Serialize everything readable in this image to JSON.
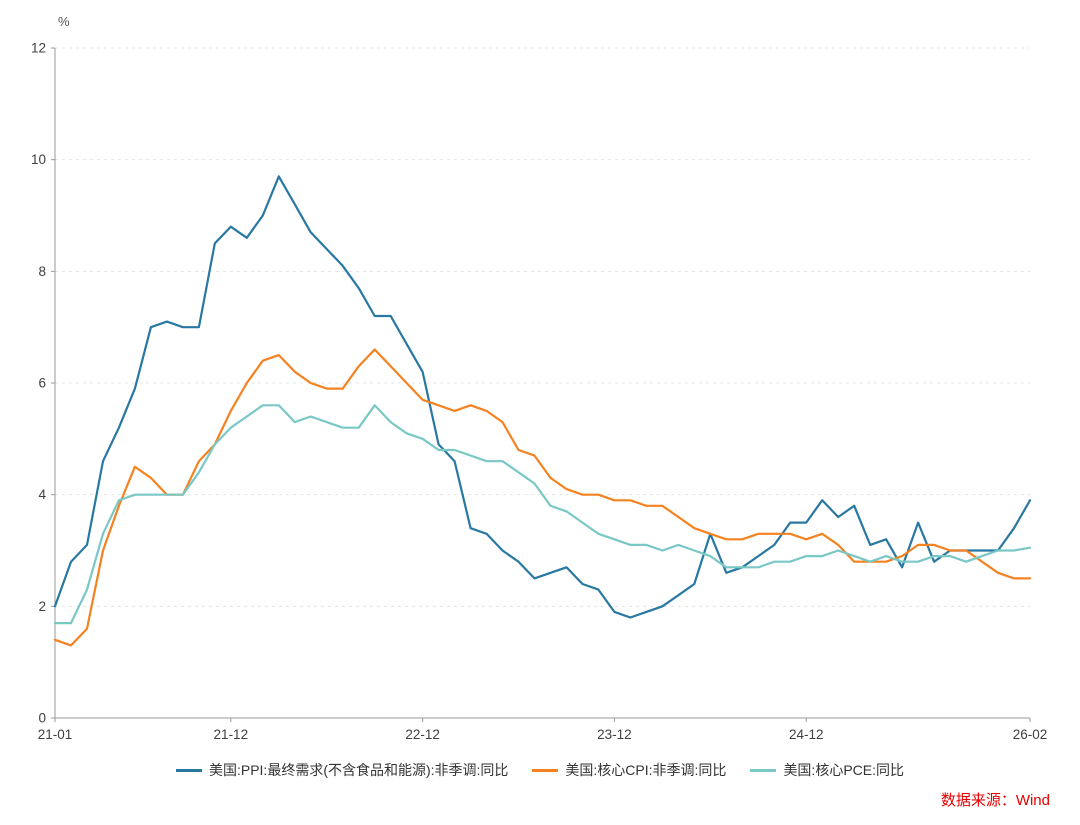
{
  "chart_data": {
    "type": "line",
    "title": "",
    "unit_label": "%",
    "xlabel": "",
    "ylabel": "",
    "ylim": [
      0,
      12
    ],
    "y_ticks": [
      0,
      2,
      4,
      6,
      8,
      10,
      12
    ],
    "grid": "dashed-horizontal",
    "legend_position": "bottom",
    "x_tick_labels": [
      "21-01",
      "21-12",
      "22-12",
      "23-12",
      "24-12",
      "26-02"
    ],
    "x_tick_indices": [
      0,
      11,
      23,
      35,
      47,
      61
    ],
    "months": [
      "21-01",
      "21-02",
      "21-03",
      "21-04",
      "21-05",
      "21-06",
      "21-07",
      "21-08",
      "21-09",
      "21-10",
      "21-11",
      "21-12",
      "22-01",
      "22-02",
      "22-03",
      "22-04",
      "22-05",
      "22-06",
      "22-07",
      "22-08",
      "22-09",
      "22-10",
      "22-11",
      "22-12",
      "23-01",
      "23-02",
      "23-03",
      "23-04",
      "23-05",
      "23-06",
      "23-07",
      "23-08",
      "23-09",
      "23-10",
      "23-11",
      "23-12",
      "24-01",
      "24-02",
      "24-03",
      "24-04",
      "24-05",
      "24-06",
      "24-07",
      "24-08",
      "24-09",
      "24-10",
      "24-11",
      "24-12",
      "25-01",
      "25-02",
      "25-03",
      "25-04",
      "25-05",
      "25-06",
      "25-07",
      "25-08",
      "25-09",
      "25-10",
      "25-11",
      "25-12",
      "26-01",
      "26-02"
    ],
    "series": [
      {
        "key": "ppi",
        "name": "美国:PPI:最终需求(不含食品和能源):非季调:同比",
        "color": "#2878a2",
        "values": [
          2.0,
          2.8,
          3.1,
          4.6,
          5.2,
          5.9,
          7.0,
          7.1,
          7.0,
          7.0,
          8.5,
          8.8,
          8.6,
          9.0,
          9.7,
          9.2,
          8.7,
          8.4,
          8.1,
          7.7,
          7.2,
          7.2,
          6.7,
          6.2,
          4.9,
          4.6,
          3.4,
          3.3,
          3.0,
          2.8,
          2.5,
          2.6,
          2.7,
          2.4,
          2.3,
          1.9,
          1.8,
          1.9,
          2.0,
          2.2,
          2.4,
          3.3,
          2.6,
          2.7,
          2.9,
          3.1,
          3.5,
          3.5,
          3.9,
          3.6,
          3.8,
          3.1,
          3.2,
          2.7,
          3.5,
          2.8,
          3.0,
          3.0,
          3.0,
          3.0,
          3.4,
          3.9
        ]
      },
      {
        "key": "core-cpi",
        "name": "美国:核心CPI:非季调:同比",
        "color": "#f58220",
        "values": [
          1.4,
          1.3,
          1.6,
          3.0,
          3.8,
          4.5,
          4.3,
          4.0,
          4.0,
          4.6,
          4.9,
          5.5,
          6.0,
          6.4,
          6.5,
          6.2,
          6.0,
          5.9,
          5.9,
          6.3,
          6.6,
          6.3,
          6.0,
          5.7,
          5.6,
          5.5,
          5.6,
          5.5,
          5.3,
          4.8,
          4.7,
          4.3,
          4.1,
          4.0,
          4.0,
          3.9,
          3.9,
          3.8,
          3.8,
          3.6,
          3.4,
          3.3,
          3.2,
          3.2,
          3.3,
          3.3,
          3.3,
          3.2,
          3.3,
          3.1,
          2.8,
          2.8,
          2.8,
          2.9,
          3.1,
          3.1,
          3.0,
          3.0,
          2.8,
          2.6,
          2.5,
          2.5
        ]
      },
      {
        "key": "core-pce",
        "name": "美国:核心PCE:同比",
        "color": "#7ac8c5",
        "values": [
          1.7,
          1.7,
          2.3,
          3.3,
          3.9,
          4.0,
          4.0,
          4.0,
          4.0,
          4.4,
          4.9,
          5.2,
          5.4,
          5.6,
          5.6,
          5.3,
          5.4,
          5.3,
          5.2,
          5.2,
          5.6,
          5.3,
          5.1,
          5.0,
          4.8,
          4.8,
          4.7,
          4.6,
          4.6,
          4.4,
          4.2,
          3.8,
          3.7,
          3.5,
          3.3,
          3.2,
          3.1,
          3.1,
          3.0,
          3.1,
          3.0,
          2.9,
          2.7,
          2.7,
          2.7,
          2.8,
          2.8,
          2.9,
          2.9,
          3.0,
          2.9,
          2.8,
          2.9,
          2.8,
          2.8,
          2.9,
          2.9,
          2.8,
          2.9,
          3.0,
          3.0,
          3.05
        ]
      }
    ],
    "source": "数据来源：Wind"
  }
}
